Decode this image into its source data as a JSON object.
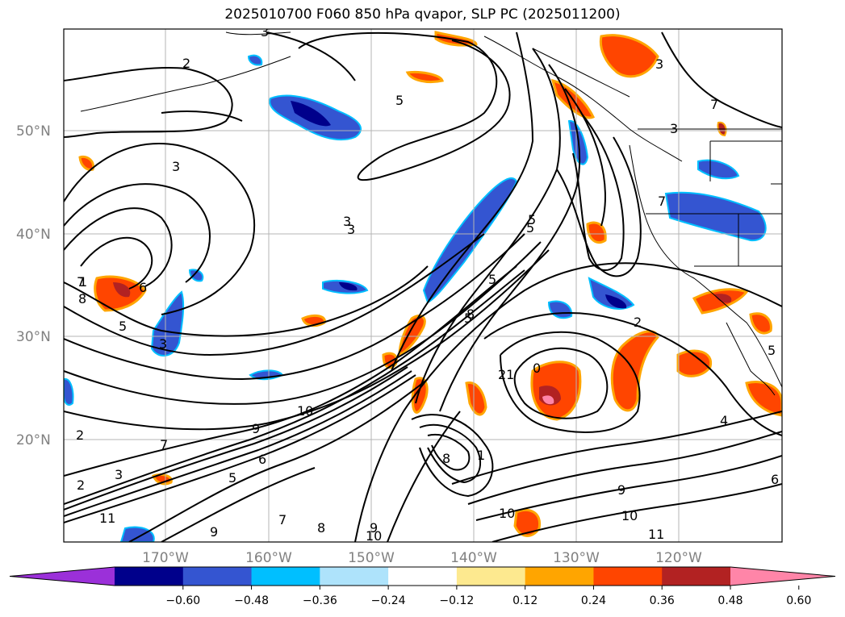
{
  "title": "2025010700 F060 850 hPa qvapor, SLP PC (2025011200)",
  "map": {
    "lat_labels": [
      "50°N",
      "40°N",
      "30°N",
      "20°N"
    ],
    "lon_labels": [
      "170°W",
      "160°W",
      "150°W",
      "140°W",
      "130°W",
      "120°W"
    ],
    "contour_labels": [
      "2",
      "3",
      "5",
      "3",
      "5",
      "3",
      "5",
      "7",
      "8",
      "6",
      "3",
      "5",
      "5",
      "2",
      "3",
      "10",
      "9",
      "8",
      "6",
      "7",
      "2",
      "3",
      "1",
      "5",
      "11",
      "9",
      "7",
      "8",
      "9",
      "10",
      "8",
      "5",
      "3",
      "1",
      "2",
      "10",
      "21",
      "0",
      "9",
      "10",
      "11",
      "4",
      "6",
      "7",
      "3",
      "5",
      "7"
    ]
  },
  "colorbar": {
    "ticks": [
      "−0.60",
      "−0.48",
      "−0.36",
      "−0.24",
      "−0.12",
      "0.12",
      "0.24",
      "0.36",
      "0.48",
      "0.60"
    ],
    "colors": [
      "#9b30d9",
      "#00008b",
      "#3455d1",
      "#00bfff",
      "#aee3fb",
      "#ffffff",
      "#fde98f",
      "#ffa500",
      "#ff4500",
      "#b22222",
      "#ff85a8"
    ]
  }
}
